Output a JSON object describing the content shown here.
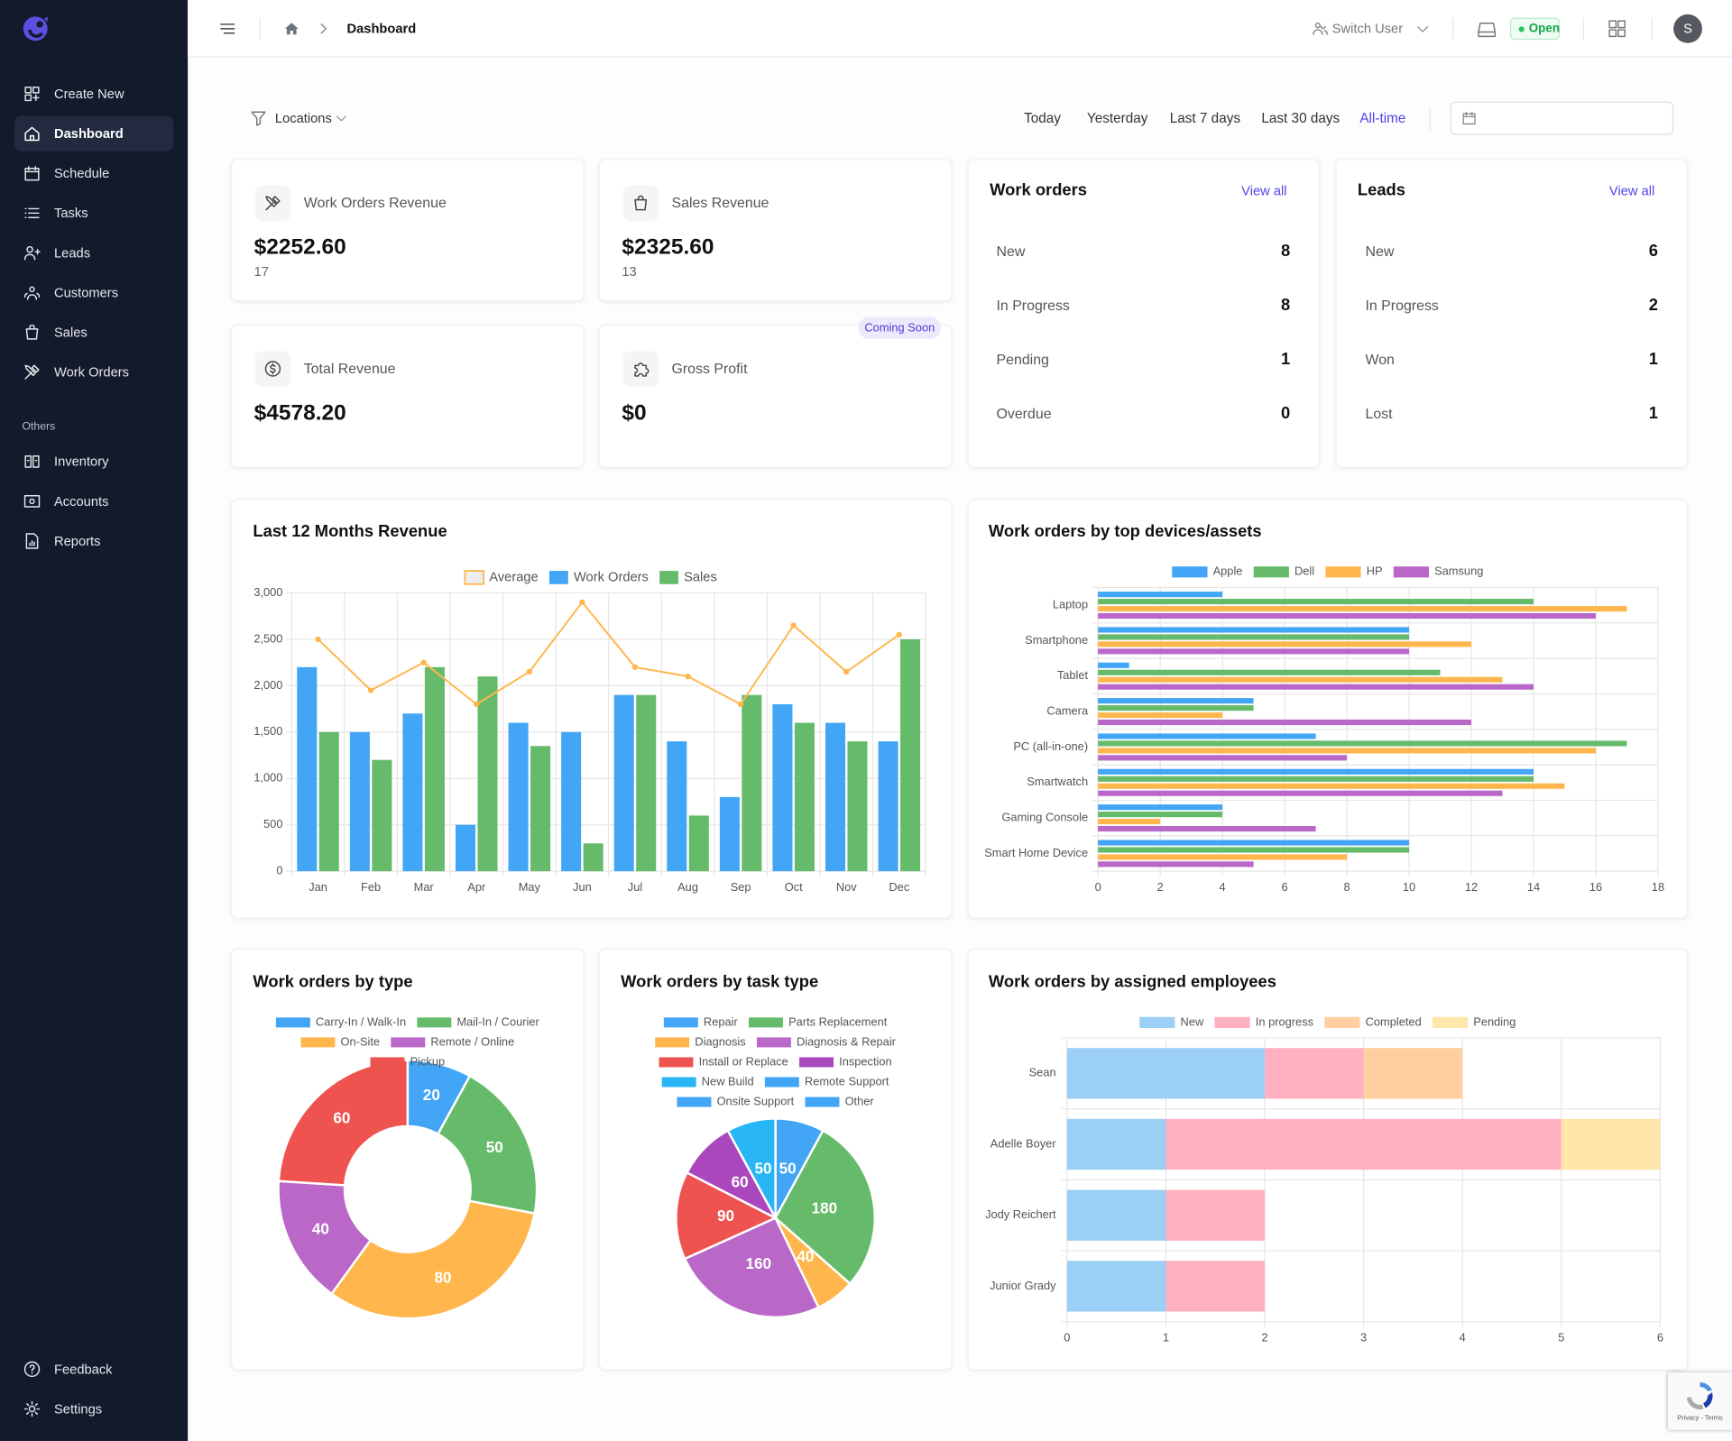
{
  "sidebar": {
    "menu": [
      "Create New",
      "Dashboard",
      "Schedule",
      "Tasks",
      "Leads",
      "Customers",
      "Sales",
      "Work Orders"
    ],
    "active_item": 1,
    "section": "Others",
    "others": [
      "Inventory",
      "Accounts",
      "Reports"
    ],
    "footer": [
      "Feedback",
      "Settings"
    ]
  },
  "header": {
    "breadcrumb": "Dashboard",
    "switch_user": "Switch User",
    "status": "Open",
    "avatar": "S"
  },
  "filters": {
    "locations": "Locations",
    "ranges": [
      "Today",
      "Yesterday",
      "Last 7 days",
      "Last 30 days",
      "All-time"
    ],
    "active_range": 4
  },
  "stats": [
    {
      "label": "Work Orders Revenue",
      "value": "$2252.60",
      "count": 17
    },
    {
      "label": "Sales Revenue",
      "value": "$2325.60",
      "count": 13
    },
    {
      "label": "Total Revenue",
      "value": "$4578.20"
    },
    {
      "label": "Gross Profit",
      "value": "$0",
      "badge": "Coming Soon"
    }
  ],
  "work_orders": {
    "title": "Work orders",
    "link": "View all",
    "rows": [
      {
        "label": "New",
        "value": 8
      },
      {
        "label": "In Progress",
        "value": 8
      },
      {
        "label": "Pending",
        "value": 1
      },
      {
        "label": "Overdue",
        "value": 0
      }
    ]
  },
  "leads": {
    "title": "Leads",
    "link": "View all",
    "rows": [
      {
        "label": "New",
        "value": 6
      },
      {
        "label": "In Progress",
        "value": 2
      },
      {
        "label": "Won",
        "value": 1
      },
      {
        "label": "Lost",
        "value": 1
      }
    ]
  },
  "recaptcha": "Privacy - Terms",
  "chart_data": [
    {
      "type": "bar",
      "title": "Last 12 Months Revenue",
      "categories": [
        "Jan",
        "Feb",
        "Mar",
        "Apr",
        "May",
        "Jun",
        "Jul",
        "Aug",
        "Sep",
        "Oct",
        "Nov",
        "Dec"
      ],
      "series": [
        {
          "name": "Average",
          "type": "line",
          "color": "#ffb74d",
          "values": [
            2500,
            1950,
            2250,
            1800,
            2150,
            2900,
            2200,
            2100,
            1800,
            2650,
            2150,
            2550
          ]
        },
        {
          "name": "Work Orders",
          "color": "#42a5f5",
          "values": [
            2200,
            1500,
            1700,
            500,
            1600,
            1500,
            1900,
            1400,
            800,
            1800,
            1600,
            1400
          ]
        },
        {
          "name": "Sales",
          "color": "#66bb6a",
          "values": [
            1500,
            1200,
            2200,
            2100,
            1350,
            300,
            1900,
            600,
            1900,
            1600,
            1400,
            2500
          ]
        }
      ],
      "ylim": [
        0,
        3000
      ],
      "yticks": [
        0,
        500,
        {
          "value": 1000,
          "label": "1,000"
        },
        {
          "value": 1500,
          "label": "1,500"
        },
        {
          "value": 2000,
          "label": "2,000"
        },
        {
          "value": 2500,
          "label": "2,500"
        },
        {
          "value": 3000,
          "label": "3,000"
        }
      ],
      "grid": true
    },
    {
      "type": "horizontal_bar",
      "title": "Work orders by top devices/assets",
      "categories": [
        "Laptop",
        "Smartphone",
        "Tablet",
        "Camera",
        "PC (all-in-one)",
        "Smartwatch",
        "Gaming Console",
        "Smart Home Device"
      ],
      "series": [
        {
          "name": "Apple",
          "color": "#42a5f5",
          "values": [
            4,
            10,
            1,
            5,
            7,
            14,
            4,
            10
          ]
        },
        {
          "name": "Dell",
          "color": "#66bb6a",
          "values": [
            14,
            10,
            11,
            5,
            17,
            14,
            4,
            10
          ]
        },
        {
          "name": "HP",
          "color": "#ffb74d",
          "values": [
            17,
            12,
            13,
            4,
            16,
            15,
            2,
            8
          ]
        },
        {
          "name": "Samsung",
          "color": "#ba68c8",
          "values": [
            16,
            10,
            14,
            12,
            8,
            13,
            7,
            5
          ]
        }
      ],
      "xlim": [
        0,
        18
      ],
      "xticks": [
        0,
        2,
        4,
        6,
        8,
        10,
        12,
        14,
        16,
        18
      ],
      "grid": true
    },
    {
      "type": "doughnut",
      "title": "Work orders by type",
      "categories": [
        "Carry-In / Walk-In",
        "Mail-In / Courier",
        "On-Site",
        "Remote / Online",
        "Pickup"
      ],
      "values": [
        20,
        50,
        80,
        40,
        60
      ],
      "colors": [
        "#42a5f5",
        "#66bb6a",
        "#ffb74d",
        "#ba68c8",
        "#ef5350"
      ]
    },
    {
      "type": "pie",
      "title": "Work orders by task type",
      "categories": [
        "Repair",
        "Parts Replacement",
        "Diagnosis",
        "Diagnosis & Repair",
        "Install or Replace",
        "Inspection",
        "New Build",
        "Remote Support",
        "Onsite Support",
        "Other"
      ],
      "values": [
        50,
        180,
        40,
        160,
        90,
        60,
        50,
        0,
        0,
        0
      ],
      "colors": [
        "#42a5f5",
        "#66bb6a",
        "#ffb74d",
        "#ba68c8",
        "#ef5350",
        "#ab47bc",
        "#29b6f6",
        "#42a5f5",
        "#42a5f5",
        "#42a5f5"
      ]
    },
    {
      "type": "stacked_horizontal_bar",
      "title": "Work orders by assigned employees",
      "categories": [
        "Sean",
        "Adelle Boyer",
        "Jody Reichert",
        "Junior Grady"
      ],
      "series": [
        {
          "name": "New",
          "color": "#9ccff5",
          "values": [
            2,
            1,
            1,
            1
          ]
        },
        {
          "name": "In progress",
          "color": "#ffb1c1",
          "values": [
            1,
            4,
            1,
            1
          ]
        },
        {
          "name": "Completed",
          "color": "#ffcf9f",
          "values": [
            1,
            0,
            0,
            0
          ]
        },
        {
          "name": "Pending",
          "color": "#ffe6aa",
          "values": [
            0,
            1,
            0,
            0
          ]
        }
      ],
      "xlim": [
        0,
        6
      ],
      "xticks": [
        0,
        1,
        2,
        3,
        4,
        5,
        6
      ],
      "grid": true
    }
  ]
}
